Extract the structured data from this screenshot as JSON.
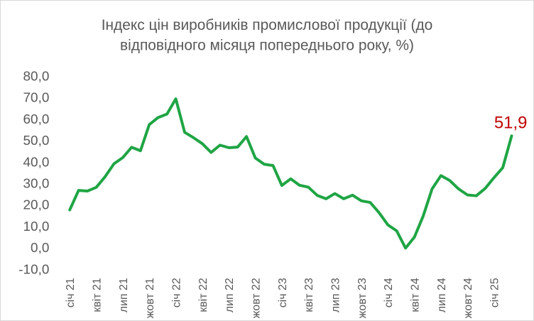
{
  "chart_data": {
    "type": "line",
    "title_lines": [
      "Індекс цін виробників промислової продукції (до",
      "відповідного місяця попереднього року, %)"
    ],
    "ylim": [
      -10,
      80
    ],
    "yticks": [
      -10,
      0,
      10,
      20,
      30,
      40,
      50,
      60,
      70,
      80
    ],
    "ytick_labels": [
      "-10,0",
      "0,0",
      "10,0",
      "20,0",
      "30,0",
      "40,0",
      "50,0",
      "60,0",
      "70,0",
      "80,0"
    ],
    "x_tick_labels": [
      {
        "index": 0,
        "label": "січ 21"
      },
      {
        "index": 3,
        "label": "квіт 21"
      },
      {
        "index": 6,
        "label": "лип 21"
      },
      {
        "index": 9,
        "label": "жовт 21"
      },
      {
        "index": 12,
        "label": "січ 22"
      },
      {
        "index": 15,
        "label": "квіт 22"
      },
      {
        "index": 18,
        "label": "лип 22"
      },
      {
        "index": 21,
        "label": "жовт 22"
      },
      {
        "index": 24,
        "label": "січ 23"
      },
      {
        "index": 27,
        "label": "квіт 23"
      },
      {
        "index": 30,
        "label": "лип 23"
      },
      {
        "index": 33,
        "label": "жовт 23"
      },
      {
        "index": 36,
        "label": "січ 24"
      },
      {
        "index": 39,
        "label": "квіт 24"
      },
      {
        "index": 42,
        "label": "лип 24"
      },
      {
        "index": 45,
        "label": "жовт 24"
      },
      {
        "index": 48,
        "label": "січ 25"
      }
    ],
    "series": [
      {
        "color": "#1fa544",
        "values": [
          17.4,
          26.5,
          26.2,
          27.9,
          32.9,
          38.9,
          41.8,
          46.6,
          45.0,
          57.2,
          60.5,
          62.1,
          69.2,
          53.6,
          51.1,
          48.3,
          44.2,
          47.6,
          46.4,
          46.7,
          51.6,
          41.6,
          38.7,
          38.1,
          28.8,
          31.9,
          28.9,
          28.0,
          24.2,
          22.6,
          25.0,
          22.6,
          24.3,
          21.6,
          20.9,
          16.1,
          10.4,
          7.6,
          -0.4,
          4.7,
          14.6,
          27.2,
          33.4,
          31.1,
          27.2,
          24.4,
          24.0,
          27.4,
          32.4,
          37.1,
          51.9
        ]
      }
    ],
    "annotation": {
      "index": 50,
      "text": "51,9",
      "color": "#c00000"
    },
    "grid": false,
    "legend": "none"
  }
}
